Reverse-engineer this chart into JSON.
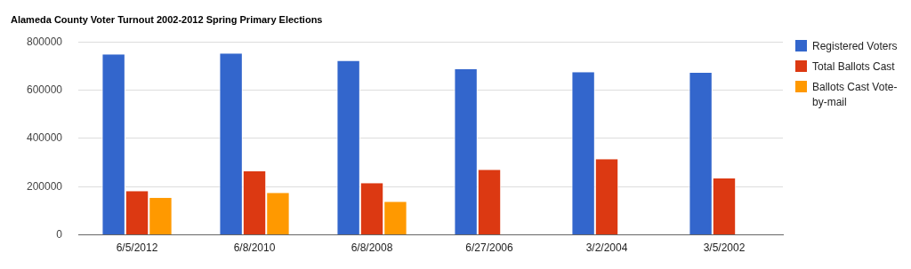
{
  "chart_data": {
    "type": "bar",
    "title": "Alameda County Voter Turnout 2002-2012 Spring Primary Elections",
    "categories": [
      "6/5/2012",
      "6/8/2010",
      "6/8/2008",
      "6/27/2006",
      "3/2/2004",
      "3/5/2002"
    ],
    "series": [
      {
        "name": "Registered Voters",
        "color": "#3366cc",
        "values": [
          748000,
          752000,
          722000,
          688000,
          675000,
          672000
        ]
      },
      {
        "name": "Total Ballots Cast",
        "color": "#dc3912",
        "values": [
          182000,
          264000,
          215000,
          270000,
          314000,
          234000
        ]
      },
      {
        "name": "Ballots Cast Vote-by-mail",
        "color": "#ff9900",
        "values": [
          154000,
          174000,
          137000,
          null,
          null,
          null
        ]
      }
    ],
    "ylim": [
      0,
      800000
    ],
    "yticks": [
      0,
      200000,
      400000,
      600000,
      800000
    ],
    "grid": "y",
    "legend": "right"
  }
}
